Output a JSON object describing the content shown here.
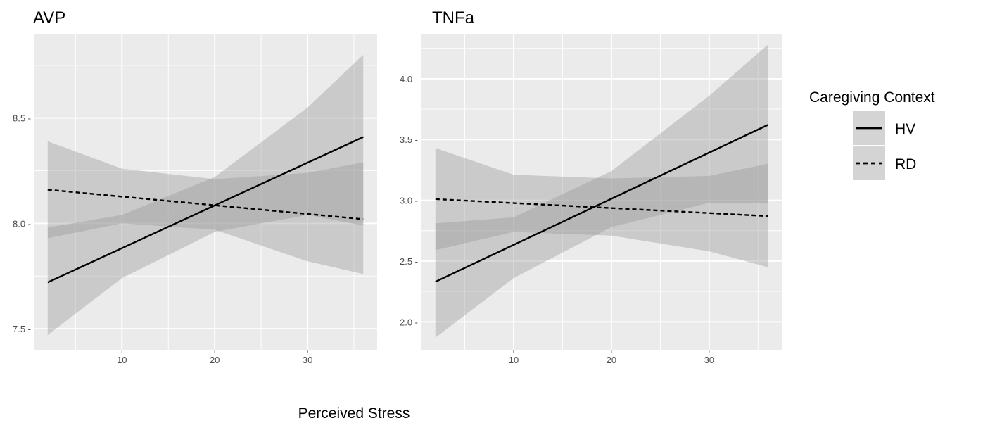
{
  "chart_data": [
    {
      "type": "line",
      "title": "AVP",
      "xlim": [
        0.5,
        37.5
      ],
      "ylim": [
        7.4,
        8.9
      ],
      "x_ticks": [
        10,
        20,
        30
      ],
      "y_ticks": [
        7.5,
        8.0,
        8.5
      ],
      "y_tick_labels": [
        "7.5 -",
        "8.0 -",
        "8.5 -"
      ],
      "series": [
        {
          "name": "HV",
          "style": "solid",
          "x": [
            2,
            36
          ],
          "y": [
            7.72,
            8.41
          ],
          "ci_x": [
            2,
            10,
            20,
            30,
            36
          ],
          "ci_upper": [
            7.98,
            8.04,
            8.22,
            8.55,
            8.8
          ],
          "ci_lower": [
            7.47,
            7.74,
            7.96,
            8.04,
            7.99
          ]
        },
        {
          "name": "RD",
          "style": "dashed",
          "x": [
            2,
            36
          ],
          "y": [
            8.16,
            8.02
          ],
          "ci_x": [
            2,
            10,
            20,
            30,
            36
          ],
          "ci_upper": [
            8.39,
            8.26,
            8.21,
            8.24,
            8.29
          ],
          "ci_lower": [
            7.93,
            8.0,
            7.97,
            7.82,
            7.76
          ]
        }
      ]
    },
    {
      "type": "line",
      "title": "TNFa",
      "xlim": [
        0.5,
        37.5
      ],
      "ylim": [
        1.77,
        4.37
      ],
      "x_ticks": [
        10,
        20,
        30
      ],
      "y_ticks": [
        2.0,
        2.5,
        3.0,
        3.5,
        4.0
      ],
      "y_tick_labels": [
        "2.0 -",
        "2.5 -",
        "3.0 -",
        "3.5 -",
        "4.0 -"
      ],
      "series": [
        {
          "name": "HV",
          "style": "solid",
          "x": [
            2,
            36
          ],
          "y": [
            2.33,
            3.62
          ],
          "ci_x": [
            2,
            10,
            20,
            30,
            36
          ],
          "ci_upper": [
            2.81,
            2.86,
            3.24,
            3.86,
            4.28
          ],
          "ci_lower": [
            1.87,
            2.36,
            2.78,
            2.98,
            2.98
          ]
        },
        {
          "name": "RD",
          "style": "dashed",
          "x": [
            2,
            36
          ],
          "y": [
            3.01,
            2.87
          ],
          "ci_x": [
            2,
            10,
            20,
            30,
            36
          ],
          "ci_upper": [
            3.43,
            3.21,
            3.18,
            3.2,
            3.3
          ],
          "ci_lower": [
            2.59,
            2.74,
            2.71,
            2.58,
            2.45
          ]
        }
      ]
    }
  ],
  "xlabel": "Perceived Stress",
  "legend": {
    "title": "Caregiving Context",
    "placement": "right",
    "items": [
      {
        "label": "HV",
        "style": "solid"
      },
      {
        "label": "RD",
        "style": "dashed"
      }
    ]
  },
  "colors": {
    "panel_background": "#ebebeb",
    "grid": "#ffffff",
    "ribbon": "#999999",
    "line": "#000000",
    "tick_text": "#4d4d4d"
  }
}
